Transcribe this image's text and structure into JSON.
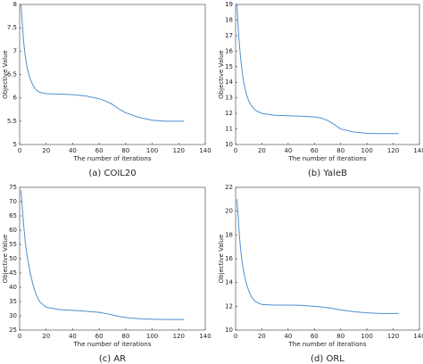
{
  "chart_data": [
    {
      "type": "line",
      "caption": "(a) COIL20",
      "xlabel": "The number of iterations",
      "ylabel": "Objective Value",
      "x": [
        1,
        2,
        3,
        4,
        5,
        6,
        8,
        10,
        12,
        15,
        20,
        30,
        40,
        50,
        60,
        65,
        70,
        75,
        80,
        90,
        100,
        110,
        124
      ],
      "series": [
        {
          "color": "#4d8fd1",
          "values": [
            8,
            7.6,
            7.2,
            6.95,
            6.75,
            6.6,
            6.4,
            6.27,
            6.18,
            6.12,
            6.09,
            6.08,
            6.07,
            6.04,
            5.98,
            5.93,
            5.86,
            5.76,
            5.68,
            5.58,
            5.52,
            5.5,
            5.5
          ]
        }
      ],
      "xlim": [
        0,
        140
      ],
      "xticks": [
        0,
        20,
        40,
        60,
        80,
        100,
        120,
        140
      ],
      "ylim": [
        5,
        8
      ],
      "yticks": [
        5,
        5.5,
        6,
        6.5,
        7,
        7.5,
        8
      ]
    },
    {
      "type": "line",
      "caption": "(b) YaleB",
      "xlabel": "The number of iterations",
      "ylabel": "Objective Value",
      "x": [
        1,
        2,
        3,
        4,
        5,
        6,
        8,
        10,
        12,
        15,
        20,
        30,
        40,
        50,
        60,
        65,
        70,
        75,
        80,
        90,
        100,
        110,
        124
      ],
      "series": [
        {
          "color": "#4d8fd1",
          "values": [
            19,
            17.5,
            16.3,
            15.4,
            14.7,
            14.1,
            13.3,
            12.8,
            12.5,
            12.2,
            12.0,
            11.88,
            11.85,
            11.82,
            11.78,
            11.7,
            11.55,
            11.3,
            11.0,
            10.8,
            10.72,
            10.7,
            10.7
          ]
        }
      ],
      "xlim": [
        0,
        140
      ],
      "xticks": [
        0,
        20,
        40,
        60,
        80,
        100,
        120,
        140
      ],
      "ylim": [
        10,
        19
      ],
      "yticks": [
        10,
        11,
        12,
        13,
        14,
        15,
        16,
        17,
        18,
        19
      ]
    },
    {
      "type": "line",
      "caption": "(c) AR",
      "xlabel": "The number of iterations",
      "ylabel": "Objective Value",
      "x": [
        1,
        2,
        3,
        4,
        5,
        6,
        8,
        10,
        12,
        15,
        20,
        30,
        40,
        50,
        60,
        65,
        70,
        75,
        80,
        90,
        100,
        110,
        124
      ],
      "series": [
        {
          "color": "#4d8fd1",
          "values": [
            74,
            68,
            62,
            57,
            53,
            50,
            45,
            41,
            38,
            35,
            33,
            32.2,
            31.9,
            31.6,
            31.2,
            30.8,
            30.3,
            29.8,
            29.4,
            29,
            28.8,
            28.7,
            28.7
          ]
        }
      ],
      "xlim": [
        0,
        140
      ],
      "xticks": [
        0,
        20,
        40,
        60,
        80,
        100,
        120,
        140
      ],
      "ylim": [
        25,
        75
      ],
      "yticks": [
        25,
        30,
        35,
        40,
        45,
        50,
        55,
        60,
        65,
        70,
        75
      ]
    },
    {
      "type": "line",
      "caption": "(d) ORL",
      "xlabel": "The number of iterations",
      "ylabel": "Objective Value",
      "x": [
        1,
        2,
        3,
        4,
        5,
        6,
        8,
        10,
        12,
        15,
        20,
        30,
        40,
        50,
        60,
        65,
        70,
        75,
        80,
        90,
        100,
        110,
        124
      ],
      "series": [
        {
          "color": "#4d8fd1",
          "values": [
            21,
            19.5,
            17.8,
            16.6,
            15.7,
            15,
            14,
            13.3,
            12.8,
            12.4,
            12.15,
            12.1,
            12.1,
            12.08,
            12.0,
            11.95,
            11.88,
            11.8,
            11.7,
            11.55,
            11.45,
            11.4,
            11.4
          ]
        }
      ],
      "xlim": [
        0,
        140
      ],
      "xticks": [
        0,
        20,
        40,
        60,
        80,
        100,
        120,
        140
      ],
      "ylim": [
        10,
        22
      ],
      "yticks": [
        10,
        12,
        14,
        16,
        18,
        20,
        22
      ]
    }
  ]
}
